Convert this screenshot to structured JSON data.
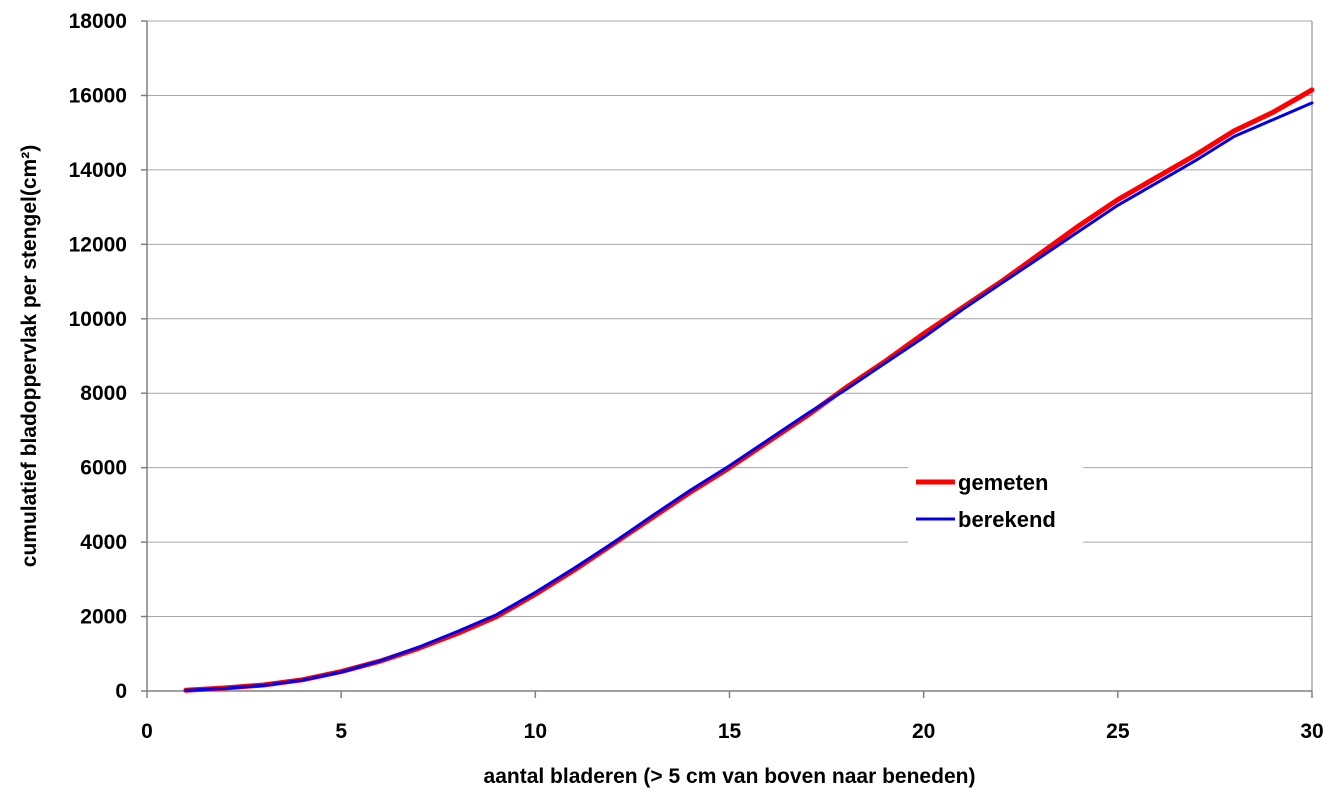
{
  "chart_data": {
    "type": "line",
    "title": "",
    "xlabel": "aantal bladeren (> 5 cm van boven naar beneden)",
    "ylabel": "cumulatief bladoppervlak per stengel(cm²)",
    "xlim": [
      0,
      30
    ],
    "ylim": [
      0,
      18000
    ],
    "xticks": [
      0,
      5,
      10,
      15,
      20,
      25,
      30
    ],
    "xtick_labels": [
      "0",
      "5",
      "10",
      "15",
      "20",
      "25",
      "30"
    ],
    "yticks": [
      0,
      2000,
      4000,
      6000,
      8000,
      10000,
      12000,
      14000,
      16000,
      18000
    ],
    "ytick_labels": [
      "0",
      "2000",
      "4000",
      "6000",
      "8000",
      "10000",
      "12000",
      "14000",
      "16000",
      "18000"
    ],
    "grid": "horizontal",
    "legend_position": "right",
    "x": [
      1,
      2,
      3,
      4,
      5,
      6,
      7,
      8,
      9,
      10,
      11,
      12,
      13,
      14,
      15,
      16,
      17,
      18,
      19,
      20,
      21,
      22,
      23,
      24,
      25,
      26,
      27,
      28,
      29,
      30
    ],
    "series": [
      {
        "name": "gemeten",
        "color": "#ff0000",
        "width": 5,
        "values": [
          20,
          80,
          160,
          300,
          520,
          800,
          1150,
          1550,
          2000,
          2600,
          3250,
          3950,
          4650,
          5350,
          6000,
          6700,
          7400,
          8150,
          8850,
          9600,
          10300,
          11000,
          11750,
          12500,
          13200,
          13800,
          14400,
          15050,
          15550,
          16150
        ]
      },
      {
        "name": "berekend",
        "color": "#0000ee",
        "width": 3,
        "values": [
          15,
          70,
          150,
          290,
          510,
          810,
          1180,
          1600,
          2050,
          2650,
          3300,
          3980,
          4700,
          5400,
          6050,
          6750,
          7450,
          8100,
          8800,
          9500,
          10250,
          10950,
          11650,
          12350,
          13050,
          13650,
          14250,
          14900,
          15350,
          15800
        ]
      }
    ]
  }
}
